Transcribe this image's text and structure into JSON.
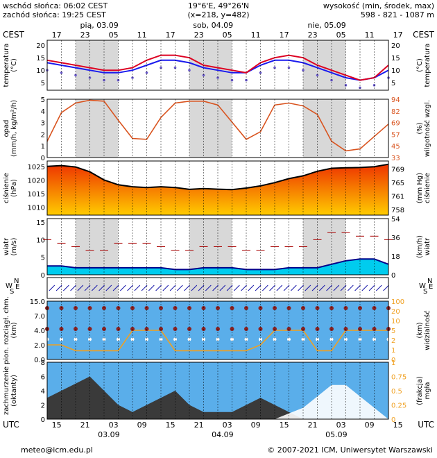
{
  "header": {
    "sunrise": "wschód słońca: 06:02 CEST",
    "sunset": "zachód słońca: 19:25 CEST",
    "coords": "19°6'E, 49°26'N",
    "grid": "(x=218,  y=482)",
    "height_label": "wysokość (min, środek, max)",
    "height_values": "598 - 821 - 1087 m"
  },
  "top_axis": {
    "tz": "CEST",
    "hours": [
      "17",
      "23",
      "05",
      "11",
      "17",
      "23",
      "05",
      "11",
      "17",
      "23",
      "05",
      "11",
      "17"
    ],
    "days": [
      {
        "label": "pią, 03.09",
        "hour": 9
      },
      {
        "label": "sob, 04.09",
        "hour": 33
      },
      {
        "label": "nie, 05.09",
        "hour": 57
      }
    ]
  },
  "bottom_axis": {
    "tz": "UTC",
    "hours": [
      "15",
      "21",
      "03",
      "09",
      "15",
      "21",
      "03",
      "09",
      "15",
      "21",
      "03",
      "09",
      "15"
    ],
    "dates": [
      {
        "label": "03.09",
        "hour": 15
      },
      {
        "label": "04.09",
        "hour": 39
      },
      {
        "label": "05.09",
        "hour": 63
      }
    ]
  },
  "panels": [
    {
      "left": "temperatura\n(°C)",
      "right": "(°C)\ntemperatura",
      "left_ticks": [
        "5",
        "10",
        "15",
        "20"
      ],
      "right_ticks": [
        "5",
        "10",
        "15",
        "20"
      ]
    },
    {
      "left": "opad\n(mm/h, kg/m²/h)",
      "right": "(%)\nwilgotność wzgl.",
      "left_ticks": [
        "0",
        "1",
        "2",
        "3",
        "4",
        "5"
      ],
      "right_ticks": [
        "33",
        "45",
        "57",
        "69",
        "82",
        "94"
      ]
    },
    {
      "left": "ciśnienie\n(hPa)",
      "right": "(mm Hg)\nciśnienie",
      "left_ticks": [
        "1010",
        "1015",
        "1020",
        "1025"
      ],
      "right_ticks": [
        "758",
        "761",
        "765",
        "769"
      ]
    },
    {
      "left": "wiatr\n(m/s)",
      "right": "(km/h)\nwiatr",
      "left_ticks": [
        "0",
        "5",
        "10",
        "15"
      ],
      "right_ticks": [
        "0",
        "18",
        "36",
        "54"
      ]
    },
    {
      "left": "W",
      "left2": "S",
      "left3": "N",
      "left4": "E",
      "right": "W",
      "right2": "S",
      "right3": "N",
      "right4": "E"
    },
    {
      "left": "pion. rozciągł. chm.\n(km)",
      "right": "(km)\nwidzialność",
      "left_ticks": [
        "0.0",
        "2.0",
        "4.0",
        "7.0",
        "15.0"
      ],
      "right_ticks": [
        "0",
        "1",
        "2",
        "5",
        "10",
        "20",
        "100"
      ]
    },
    {
      "left": "zachmurzenie\n(oktanty)",
      "right": "(frakcja)\nmgła",
      "left_ticks": [
        "0",
        "2",
        "4",
        "6",
        "8"
      ],
      "right_ticks": [
        "0",
        "0.25",
        "0.5",
        "0.75",
        "1"
      ]
    }
  ],
  "footer": {
    "email": "meteo@icm.edu.pl",
    "copyright": "© 2007-2021 ICM, Uniwersytet Warszawski"
  },
  "colors": {
    "temp_line": "#dd0022",
    "dew_line": "#1a1aee",
    "humidity_line": "#d9531e",
    "pressure_high": "#ee3300",
    "pressure_low": "#ffcc00",
    "wind_fill": "#00ccee",
    "wind_gust": "#aa0000",
    "sky_blue": "#5aaeea",
    "cloud_dark": "#3a3a3a",
    "visibility_line": "#f0a020",
    "cloud_dots": "#8b2222"
  },
  "chart_data": [
    {
      "type": "line",
      "name": "temperature",
      "x_unit": "hours from 03.09 15 UTC",
      "x": [
        0,
        3,
        6,
        9,
        12,
        15,
        18,
        21,
        24,
        27,
        30,
        33,
        36,
        39,
        42,
        45,
        48,
        51,
        54,
        57,
        60,
        63,
        66,
        69,
        72
      ],
      "series": [
        {
          "name": "temperature",
          "values": [
            14,
            13,
            12,
            11,
            10,
            10,
            11,
            14,
            16,
            16,
            15,
            12,
            11,
            10,
            9,
            13,
            15,
            16,
            15,
            12,
            10,
            8,
            6,
            7,
            12
          ]
        },
        {
          "name": "dew point",
          "values": [
            13,
            12,
            11,
            10,
            9,
            9,
            10,
            12,
            14,
            14,
            13,
            11,
            10,
            9,
            9,
            12,
            14,
            14,
            13,
            11,
            9,
            7,
            6,
            7,
            10
          ]
        }
      ],
      "ylim": [
        2,
        22
      ]
    },
    {
      "type": "line",
      "name": "relative humidity",
      "x": [
        0,
        3,
        6,
        9,
        12,
        15,
        18,
        21,
        24,
        27,
        30,
        33,
        36,
        39,
        42,
        45,
        48,
        51,
        54,
        57,
        60,
        63,
        66,
        69,
        72
      ],
      "values": [
        50,
        80,
        90,
        93,
        92,
        72,
        53,
        52,
        75,
        90,
        92,
        92,
        88,
        70,
        52,
        60,
        88,
        90,
        87,
        78,
        50,
        40,
        42,
        55,
        68
      ],
      "ylim": [
        33,
        94
      ]
    },
    {
      "type": "area",
      "name": "pressure",
      "x": [
        0,
        3,
        6,
        9,
        12,
        15,
        18,
        21,
        24,
        27,
        30,
        33,
        36,
        39,
        42,
        45,
        48,
        51,
        54,
        57,
        60,
        63,
        66,
        69,
        72
      ],
      "values": [
        1025,
        1025.3,
        1024.8,
        1023,
        1020,
        1018.2,
        1017.5,
        1017.2,
        1017.5,
        1017.2,
        1016.5,
        1016.8,
        1016.6,
        1016.4,
        1017,
        1017.8,
        1019,
        1020.5,
        1021.5,
        1023.2,
        1024.3,
        1024.5,
        1024.6,
        1024.9,
        1025.8
      ],
      "ylim": [
        1007,
        1027
      ]
    },
    {
      "type": "area",
      "name": "wind",
      "x": [
        0,
        3,
        6,
        9,
        12,
        15,
        18,
        21,
        24,
        27,
        30,
        33,
        36,
        39,
        42,
        45,
        48,
        51,
        54,
        57,
        60,
        63,
        66,
        69,
        72
      ],
      "values": [
        2.5,
        2.5,
        2,
        2,
        2,
        2,
        2,
        2,
        2,
        1.5,
        1.5,
        2,
        2,
        2,
        1.5,
        1.5,
        1.5,
        2,
        2,
        2,
        3,
        4,
        4.5,
        4.5,
        3
      ],
      "gusts": [
        10,
        9,
        8,
        7,
        7,
        9,
        9,
        9,
        8,
        7,
        7,
        8,
        8,
        8,
        7,
        7,
        8,
        8,
        8,
        10,
        12,
        12,
        11,
        11,
        10
      ],
      "ylim": [
        0,
        16
      ]
    },
    {
      "type": "scatter",
      "name": "cloud extent and visibility",
      "x": [
        0,
        3,
        6,
        9,
        12,
        15,
        18,
        21,
        24,
        27,
        30,
        33,
        36,
        39,
        42,
        45,
        48,
        51,
        54,
        57,
        60,
        63,
        66,
        69,
        72
      ],
      "visibility": [
        5,
        5,
        3,
        3,
        3,
        3,
        10,
        10,
        10,
        3,
        3,
        3,
        3,
        3,
        3,
        5,
        10,
        10,
        10,
        3,
        3,
        10,
        10,
        10,
        10
      ],
      "ylim": [
        0,
        15
      ]
    },
    {
      "type": "area",
      "name": "cloud cover",
      "x": [
        0,
        3,
        6,
        9,
        12,
        15,
        18,
        21,
        24,
        27,
        30,
        33,
        36,
        39,
        42,
        45,
        48,
        51,
        54,
        57,
        60,
        63,
        66,
        69,
        72
      ],
      "values": [
        3,
        4,
        5,
        6,
        4,
        2,
        1,
        2,
        3,
        4,
        2,
        1,
        1,
        1,
        2,
        3,
        2,
        1,
        0,
        0,
        0,
        0,
        0,
        0,
        0
      ],
      "fog": [
        0,
        0,
        0,
        0,
        0,
        0,
        0,
        0,
        0,
        0,
        0,
        0,
        0,
        0,
        0,
        0,
        0,
        0.1,
        0.2,
        0.4,
        0.6,
        0.6,
        0.4,
        0.2,
        0
      ],
      "ylim": [
        0,
        8
      ]
    }
  ]
}
